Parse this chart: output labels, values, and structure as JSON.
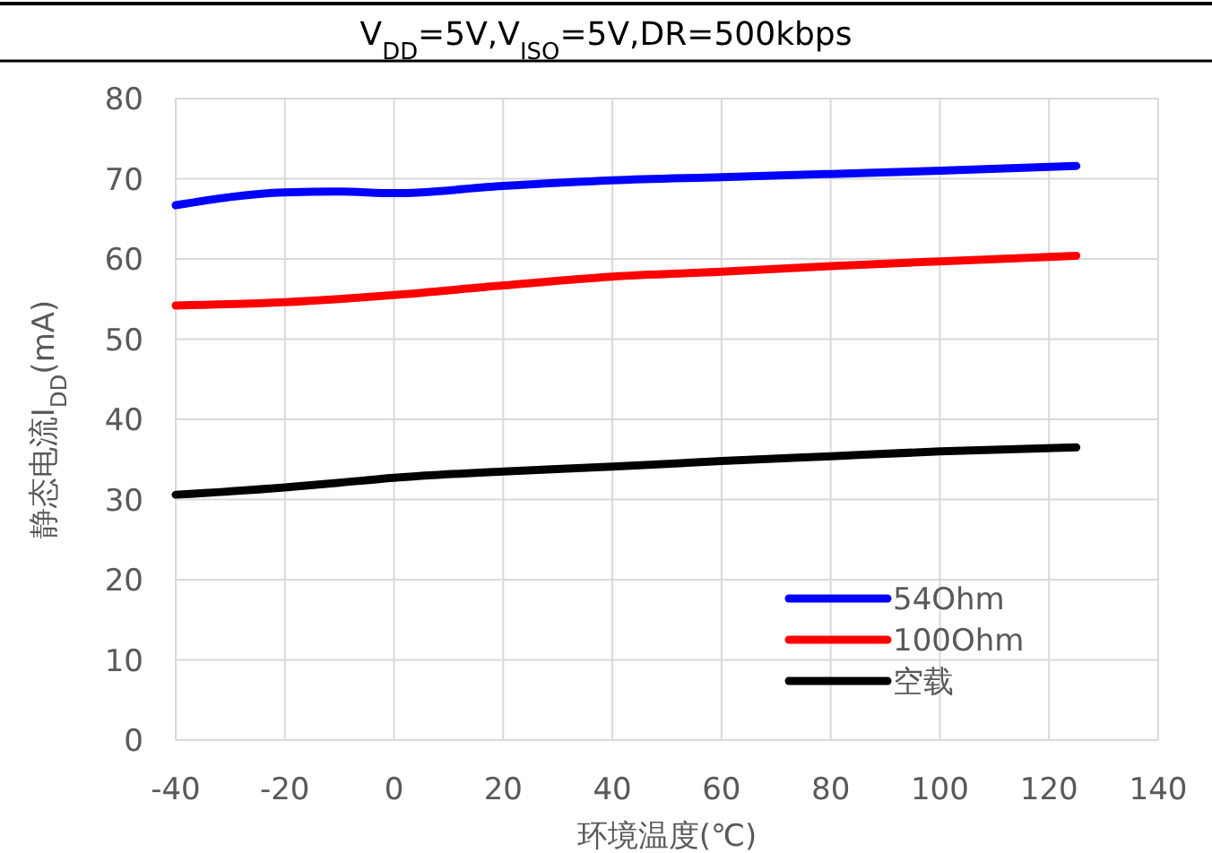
{
  "chart_data": {
    "type": "line",
    "title": "V$_{DD}$=5V,V$_{ISO}$=5V,DR=500kbps",
    "xlabel": "环境温度(℃)",
    "ylabel": "静态电流I$_{DD}$(mA)",
    "x": [
      -40,
      -20,
      -10,
      0,
      20,
      40,
      60,
      80,
      100,
      125
    ],
    "series": [
      {
        "name": "54Ohm",
        "color": "#0000ff",
        "values": [
          66.7,
          68.3,
          68.4,
          68.2,
          69.1,
          69.8,
          70.2,
          70.6,
          71.0,
          71.6
        ]
      },
      {
        "name": "100Ohm",
        "color": "#ff0000",
        "values": [
          54.2,
          54.6,
          55.0,
          55.5,
          56.7,
          57.8,
          58.4,
          59.1,
          59.7,
          60.4
        ]
      },
      {
        "name": "空载",
        "color": "#000000",
        "values": [
          30.6,
          31.5,
          32.1,
          32.7,
          33.5,
          34.1,
          34.8,
          35.4,
          36.0,
          36.5
        ]
      }
    ],
    "xlim": [
      -40,
      140
    ],
    "xticks": [
      -40,
      -20,
      0,
      20,
      40,
      60,
      80,
      100,
      120,
      140
    ],
    "ylim": [
      0,
      80
    ],
    "yticks": [
      0,
      10,
      20,
      30,
      40,
      50,
      60,
      70,
      80
    ],
    "grid": true,
    "legend": "bottom right",
    "marker": "none",
    "line_style": "solid"
  }
}
